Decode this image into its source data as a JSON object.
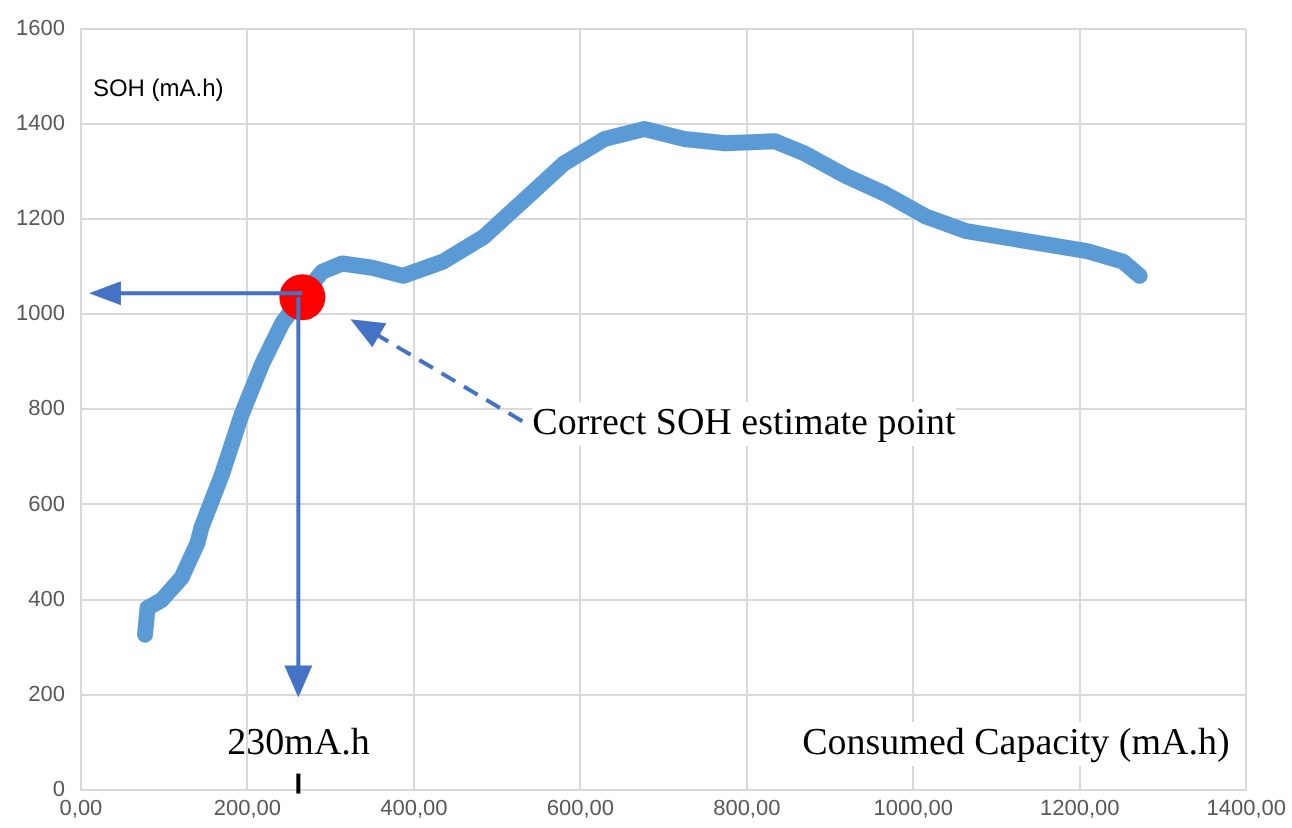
{
  "chart_data": {
    "type": "line",
    "xlabel": "Consumed Capacity (mA.h)",
    "ylabel": "SOH  (mA.h)",
    "annotations": [
      "230mA.h",
      "Correct SOH estimate point"
    ],
    "xlim": [
      0,
      1400
    ],
    "xticks": [
      {
        "value": 0,
        "label": "0,00"
      },
      {
        "value": 200,
        "label": "200,00"
      },
      {
        "value": 400,
        "label": "400,00"
      },
      {
        "value": 600,
        "label": "600,00"
      },
      {
        "value": 800,
        "label": "800,00"
      },
      {
        "value": 1000,
        "label": "1000,00"
      },
      {
        "value": 1200,
        "label": "1200,00"
      },
      {
        "value": 1400,
        "label": "1400,00"
      }
    ],
    "ylim": [
      0,
      1600
    ],
    "yticks": [
      0,
      200,
      400,
      600,
      800,
      1000,
      1200,
      1400,
      1600
    ],
    "grid": true,
    "legend": false,
    "series": [
      {
        "color": "#5b9bd5",
        "marker": "none",
        "line_style": "solid",
        "x": [
          77,
          80,
          97,
          121,
          140,
          145,
          169,
          193,
          218,
          242,
          266,
          290,
          314,
          350,
          387,
          435,
          484,
          532,
          580,
          629,
          677,
          725,
          774,
          834,
          870,
          919,
          967,
          1015,
          1064,
          1136,
          1209,
          1252,
          1272
        ],
        "values": [
          326,
          382,
          399,
          446,
          519,
          553,
          661,
          789,
          897,
          982,
          1038,
          1090,
          1107,
          1098,
          1081,
          1111,
          1163,
          1240,
          1317,
          1369,
          1390,
          1369,
          1360,
          1364,
          1338,
          1291,
          1253,
          1206,
          1175,
          1154,
          1133,
          1111,
          1081
        ]
      },
      {
        "type": "scatter",
        "color": "#ff0000",
        "marker": "circle",
        "x": [
          266
        ],
        "values": [
          1036
        ]
      }
    ]
  }
}
